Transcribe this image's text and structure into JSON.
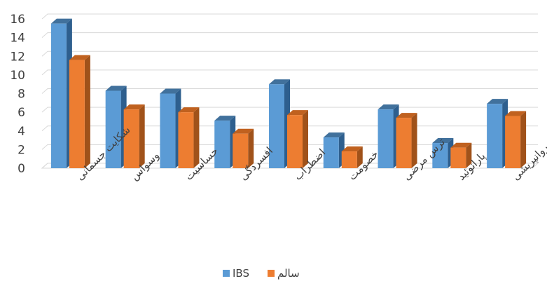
{
  "chart_data": {
    "type": "bar",
    "categories": [
      "شکایت جسمانی",
      "وسواس",
      "حساسیت",
      "افسردگی",
      "اضطراب",
      "خصومت",
      "ترس مرضی",
      "پارانوئید",
      "روانپریشی"
    ],
    "series": [
      {
        "name": "IBS",
        "values": [
          15.5,
          8.3,
          8.0,
          5.1,
          9.0,
          3.3,
          6.3,
          2.7,
          6.9
        ],
        "color": "#5B9BD5",
        "side_color": "#2E5F8E",
        "top_color": "#41719C"
      },
      {
        "name": "سالم",
        "values": [
          11.6,
          6.3,
          6.0,
          3.7,
          5.7,
          1.8,
          5.4,
          2.2,
          5.6
        ],
        "color": "#ED7D31",
        "side_color": "#A0521A",
        "top_color": "#C0611F"
      }
    ],
    "ylim": [
      0,
      16
    ],
    "yticks": [
      0,
      2,
      4,
      6,
      8,
      10,
      12,
      14,
      16
    ],
    "grid": true,
    "legend_position": "bottom"
  }
}
